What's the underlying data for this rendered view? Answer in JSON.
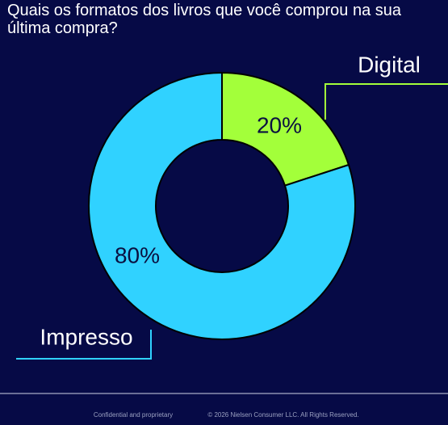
{
  "chart_data": {
    "type": "donut",
    "title": "Quais os formatos dos livros que você comprou na sua última compra?",
    "categories": [
      "Digital",
      "Impresso"
    ],
    "values": [
      20,
      80
    ],
    "value_labels": [
      "20%",
      "80%"
    ],
    "colors": [
      "#a3ff3a",
      "#30d2ff"
    ]
  },
  "footer": {
    "confidential": "Confidential and proprietary",
    "copyright": "© 2026 Nielsen Consumer LLC. All Rights Reserved."
  }
}
